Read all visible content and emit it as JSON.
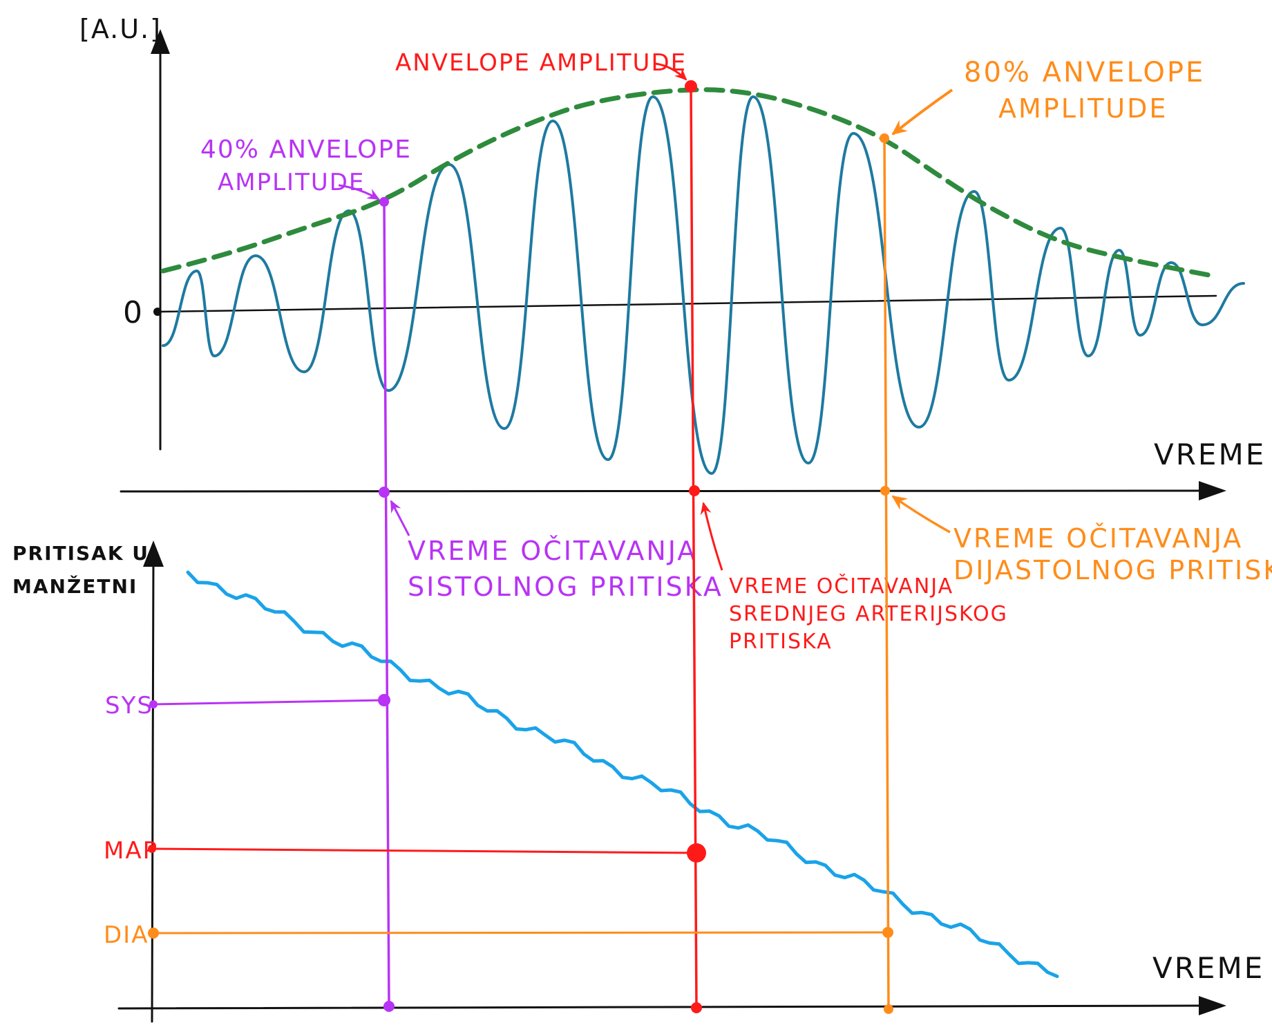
{
  "colors": {
    "axis": "#111111",
    "oscillation": "#1e7aa0",
    "envelope": "#2e8b3d",
    "systolic": "#b833f5",
    "map": "#ff1a1a",
    "diastolic": "#ff8c1a",
    "cuff_pressure": "#1aa3e8"
  },
  "top_plot": {
    "y_unit": "[A.U.]",
    "zero_label": "0",
    "x_label": "VREME"
  },
  "bottom_plot": {
    "y_label_line1": "PRITISAK U",
    "y_label_line2": "MANŽETNI",
    "x_label": "VREME",
    "tick_sys": "SYS",
    "tick_map": "MAP",
    "tick_dia": "DIA"
  },
  "annotations": {
    "systolic_top_line1": "40% ANVELOPE",
    "systolic_top_line2": "AMPLITUDE",
    "map_top": "ANVELOPE AMPLITUDE",
    "diastolic_top_line1": "80% ANVELOPE",
    "diastolic_top_line2": "AMPLITUDE",
    "systolic_time_line1": "VREME OČITAVANJA",
    "systolic_time_line2": "SISTOLNOG PRITISKA",
    "map_time_line1": "VREME OČITAVANJA",
    "map_time_line2": "SREDNJEG ARTERIJSKOG",
    "map_time_line3": "PRITISKA",
    "diastolic_time_line1": "VREME OČITAVANJA",
    "diastolic_time_line2": "DIJASTOLNOG PRITISKA"
  }
}
